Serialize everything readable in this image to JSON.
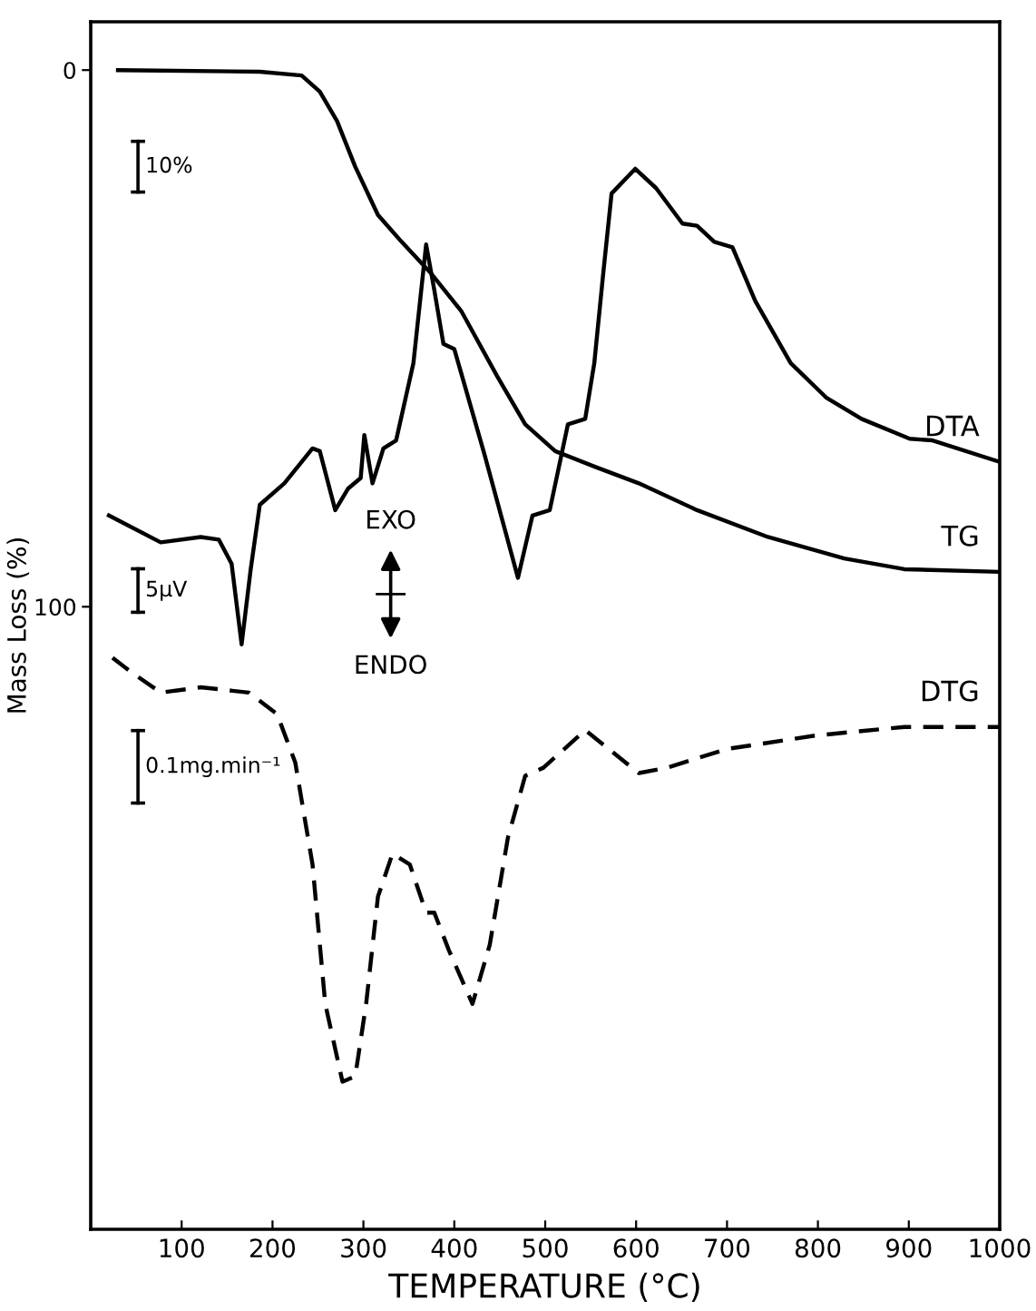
{
  "chart_data": {
    "type": "line",
    "xlabel": "TEMPERATURE (°C)",
    "ylabel": "Mass Loss (%)",
    "xlim": [
      0,
      1000
    ],
    "xticks": [
      100,
      200,
      300,
      400,
      500,
      600,
      700,
      800,
      900,
      1000
    ],
    "ylim": [
      216,
      -9
    ],
    "yticks": [
      0,
      100
    ],
    "grid": false,
    "series": [
      {
        "name": "TG",
        "color": "#000000",
        "line_style": "solid",
        "x": [
          30,
          186,
          232,
          252,
          271,
          291,
          316,
          342,
          375,
          408,
          447,
          478,
          511,
          556,
          603,
          667,
          745,
          829,
          895,
          1000
        ],
        "values": [
          0,
          0.3,
          1,
          4,
          9.5,
          18,
          27,
          32,
          38,
          45,
          57,
          66,
          71,
          74,
          77,
          82,
          87,
          91,
          93,
          93.5
        ]
      },
      {
        "name": "DTA",
        "color": "#000000",
        "line_style": "solid",
        "x": [
          20,
          77,
          121,
          141,
          155,
          166,
          176,
          186,
          213,
          244,
          252,
          269,
          283,
          297,
          301,
          310,
          322,
          336,
          355,
          369,
          378,
          388,
          400,
          433,
          470,
          486,
          505,
          525,
          544,
          554,
          564,
          573,
          599,
          622,
          651,
          667,
          686,
          706,
          731,
          770,
          809,
          848,
          901,
          926,
          1000
        ],
        "values": [
          83,
          88,
          87,
          87.5,
          92,
          107,
          93,
          81,
          77,
          70.5,
          71,
          82,
          78,
          76,
          68,
          77,
          70.5,
          69,
          54.6,
          32.5,
          41,
          51,
          52,
          71.5,
          94.6,
          83,
          82,
          66,
          65,
          54.6,
          37.6,
          23,
          18.4,
          22,
          28.6,
          29,
          32,
          33,
          43,
          54.6,
          61,
          65,
          68.7,
          69,
          73
        ]
      },
      {
        "name": "DTG",
        "color": "#000000",
        "line_style": "dashed",
        "x": [
          24,
          43,
          77,
          121,
          174,
          205,
          225,
          244,
          258,
          277,
          291,
          303,
          316,
          332,
          351,
          369,
          378,
          394,
          420,
          439,
          459,
          478,
          498,
          544,
          603,
          634,
          700,
          797,
          895,
          1000
        ],
        "values": [
          109.5,
          112,
          116,
          115,
          116,
          120,
          129,
          148,
          174,
          188.5,
          187.5,
          174,
          154,
          146,
          148,
          157,
          157,
          164,
          174,
          163,
          143,
          131.5,
          130,
          123,
          131,
          130,
          126.5,
          124,
          122.4,
          122.4
        ]
      }
    ],
    "annotations": [
      "10%",
      "5μV",
      "0.1mg.min⁻¹",
      "EXO",
      "ENDO"
    ]
  }
}
